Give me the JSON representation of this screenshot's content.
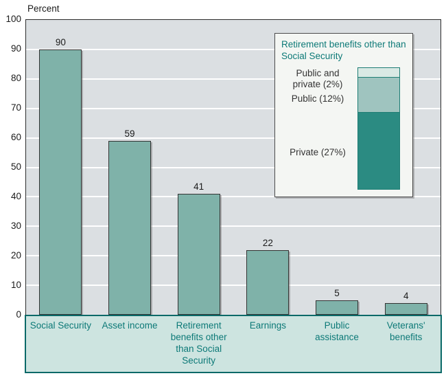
{
  "chart_data": {
    "type": "bar",
    "title": "",
    "xlabel": "",
    "ylabel": "Percent",
    "ylim": [
      0,
      100
    ],
    "grid": "horizontal white gridlines every 10",
    "categories": [
      "Social Security",
      "Asset income",
      "Retirement benefits other than Social Security",
      "Earnings",
      "Public assistance",
      "Veterans' benefits"
    ],
    "values": [
      90,
      59,
      41,
      22,
      5,
      4
    ],
    "legend_position": "inset upper right",
    "inset": {
      "title": "Retirement benefits other than Social Security",
      "type": "stacked-bar",
      "segments": [
        {
          "label": "Public and private (2%)",
          "value": 2,
          "color": "#d9e9e4"
        },
        {
          "label": "Public (12%)",
          "value": 12,
          "color": "#9fc4bf"
        },
        {
          "label": "Private (27%)",
          "value": 27,
          "color": "#2b8b82"
        }
      ]
    }
  },
  "axis": {
    "ticks": [
      "0",
      "10",
      "20",
      "30",
      "40",
      "50",
      "60",
      "70",
      "80",
      "90",
      "100"
    ]
  },
  "colors": {
    "bar_fill": "#7fb2a9",
    "bar_border": "#333333",
    "plot_bg": "#dbdfe2",
    "plot_border": "#2b2b2b",
    "gridline": "#ffffff",
    "band_bg": "#cde4e0",
    "band_border": "#0a6968",
    "teal_text": "#0c7977",
    "inset_bg": "#f4f6f3",
    "inset_border": "#4a4a4a",
    "segment_border": "#1d7d74",
    "text": "#1a1a1a"
  }
}
